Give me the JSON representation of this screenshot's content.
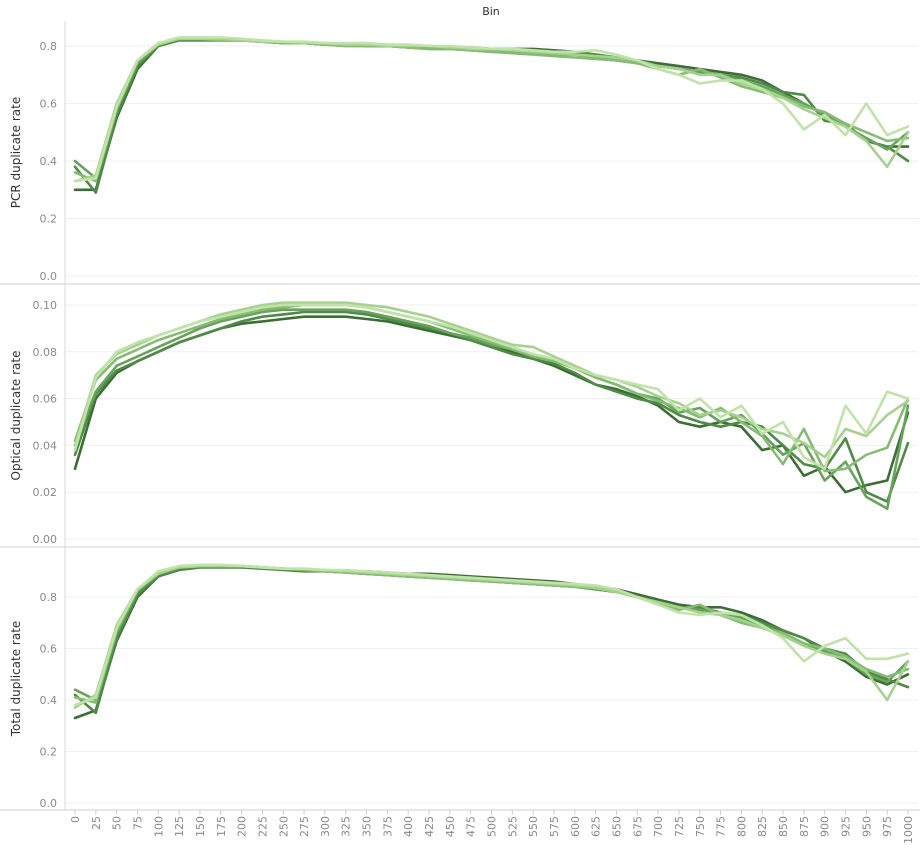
{
  "chart_data": {
    "type": "line",
    "x_title": "Bin",
    "x": [
      0,
      25,
      50,
      75,
      100,
      125,
      150,
      175,
      200,
      225,
      250,
      275,
      300,
      325,
      350,
      375,
      400,
      425,
      450,
      475,
      500,
      525,
      550,
      575,
      600,
      625,
      650,
      675,
      700,
      725,
      750,
      775,
      800,
      825,
      850,
      875,
      900,
      925,
      950,
      975,
      1000
    ],
    "series_colors": [
      "#3b6e34",
      "#4f8a46",
      "#67a35a",
      "#86bb75",
      "#a5d18f",
      "#c0e3a8"
    ],
    "panels": [
      {
        "ylabel": "PCR duplicate rate",
        "ylim": [
          0,
          0.85
        ],
        "yticks": [
          "0.0",
          "0.2",
          "0.4",
          "0.6",
          "0.8"
        ],
        "ytick_values": [
          0,
          0.2,
          0.4,
          0.6,
          0.8
        ],
        "series": [
          {
            "values": [
              0.3,
              0.3,
              0.55,
              0.72,
              0.8,
              0.82,
              0.82,
              0.82,
              0.82,
              0.815,
              0.81,
              0.81,
              0.805,
              0.805,
              0.8,
              0.8,
              0.8,
              0.8,
              0.795,
              0.795,
              0.79,
              0.79,
              0.79,
              0.785,
              0.78,
              0.77,
              0.76,
              0.75,
              0.74,
              0.73,
              0.72,
              0.71,
              0.7,
              0.68,
              0.64,
              0.6,
              0.56,
              0.52,
              0.47,
              0.45,
              0.45
            ]
          },
          {
            "values": [
              0.38,
              0.29,
              0.56,
              0.73,
              0.8,
              0.82,
              0.82,
              0.82,
              0.82,
              0.815,
              0.81,
              0.81,
              0.805,
              0.805,
              0.8,
              0.8,
              0.795,
              0.795,
              0.79,
              0.79,
              0.785,
              0.785,
              0.78,
              0.78,
              0.775,
              0.77,
              0.76,
              0.75,
              0.73,
              0.72,
              0.71,
              0.7,
              0.69,
              0.67,
              0.64,
              0.63,
              0.54,
              0.53,
              0.47,
              0.45,
              0.4
            ]
          },
          {
            "values": [
              0.4,
              0.34,
              0.58,
              0.74,
              0.805,
              0.825,
              0.825,
              0.82,
              0.82,
              0.815,
              0.81,
              0.81,
              0.805,
              0.8,
              0.8,
              0.8,
              0.795,
              0.79,
              0.79,
              0.785,
              0.78,
              0.78,
              0.775,
              0.77,
              0.77,
              0.76,
              0.75,
              0.74,
              0.73,
              0.72,
              0.71,
              0.7,
              0.68,
              0.66,
              0.63,
              0.6,
              0.56,
              0.52,
              0.48,
              0.44,
              0.5
            ]
          },
          {
            "values": [
              0.36,
              0.33,
              0.58,
              0.75,
              0.81,
              0.825,
              0.825,
              0.82,
              0.82,
              0.815,
              0.81,
              0.81,
              0.805,
              0.8,
              0.8,
              0.8,
              0.795,
              0.79,
              0.79,
              0.785,
              0.78,
              0.775,
              0.77,
              0.765,
              0.76,
              0.755,
              0.75,
              0.74,
              0.72,
              0.7,
              0.72,
              0.69,
              0.66,
              0.64,
              0.62,
              0.59,
              0.57,
              0.53,
              0.5,
              0.47,
              0.48
            ]
          },
          {
            "values": [
              0.33,
              0.35,
              0.6,
              0.75,
              0.805,
              0.825,
              0.825,
              0.825,
              0.82,
              0.815,
              0.815,
              0.81,
              0.81,
              0.805,
              0.805,
              0.8,
              0.8,
              0.8,
              0.795,
              0.79,
              0.79,
              0.785,
              0.78,
              0.775,
              0.77,
              0.765,
              0.76,
              0.75,
              0.73,
              0.72,
              0.7,
              0.7,
              0.67,
              0.65,
              0.62,
              0.58,
              0.55,
              0.52,
              0.47,
              0.38,
              0.5
            ]
          },
          {
            "values": [
              0.33,
              0.34,
              0.59,
              0.75,
              0.81,
              0.83,
              0.83,
              0.83,
              0.825,
              0.82,
              0.815,
              0.815,
              0.81,
              0.81,
              0.81,
              0.805,
              0.805,
              0.8,
              0.8,
              0.795,
              0.79,
              0.79,
              0.785,
              0.78,
              0.78,
              0.785,
              0.77,
              0.75,
              0.72,
              0.7,
              0.67,
              0.68,
              0.68,
              0.65,
              0.6,
              0.51,
              0.56,
              0.49,
              0.6,
              0.49,
              0.52
            ]
          }
        ]
      },
      {
        "ylabel": "Optical duplicate rate",
        "ylim": [
          0,
          0.103
        ],
        "yticks": [
          "0.00",
          "0.02",
          "0.04",
          "0.06",
          "0.08",
          "0.10"
        ],
        "ytick_values": [
          0,
          0.02,
          0.04,
          0.06,
          0.08,
          0.1
        ],
        "series": [
          {
            "values": [
              0.03,
              0.06,
              0.071,
              0.076,
              0.08,
              0.084,
              0.087,
              0.09,
              0.092,
              0.093,
              0.094,
              0.095,
              0.095,
              0.095,
              0.094,
              0.093,
              0.091,
              0.089,
              0.087,
              0.085,
              0.082,
              0.08,
              0.077,
              0.074,
              0.07,
              0.066,
              0.064,
              0.061,
              0.057,
              0.05,
              0.048,
              0.05,
              0.048,
              0.038,
              0.04,
              0.027,
              0.031,
              0.02,
              0.023,
              0.025,
              0.054
            ]
          },
          {
            "values": [
              0.036,
              0.062,
              0.072,
              0.076,
              0.08,
              0.084,
              0.087,
              0.09,
              0.093,
              0.095,
              0.096,
              0.097,
              0.097,
              0.097,
              0.096,
              0.094,
              0.092,
              0.09,
              0.088,
              0.085,
              0.082,
              0.079,
              0.077,
              0.075,
              0.071,
              0.066,
              0.063,
              0.06,
              0.058,
              0.053,
              0.05,
              0.048,
              0.05,
              0.048,
              0.04,
              0.032,
              0.03,
              0.043,
              0.02,
              0.016,
              0.041
            ]
          },
          {
            "values": [
              0.04,
              0.063,
              0.074,
              0.078,
              0.082,
              0.086,
              0.09,
              0.093,
              0.095,
              0.097,
              0.098,
              0.098,
              0.098,
              0.098,
              0.097,
              0.095,
              0.093,
              0.091,
              0.088,
              0.086,
              0.083,
              0.081,
              0.079,
              0.076,
              0.073,
              0.069,
              0.066,
              0.062,
              0.06,
              0.054,
              0.056,
              0.05,
              0.053,
              0.045,
              0.036,
              0.041,
              0.025,
              0.033,
              0.018,
              0.013,
              0.057
            ]
          },
          {
            "values": [
              0.042,
              0.068,
              0.077,
              0.081,
              0.085,
              0.088,
              0.091,
              0.094,
              0.096,
              0.098,
              0.099,
              0.1,
              0.1,
              0.1,
              0.099,
              0.097,
              0.095,
              0.093,
              0.09,
              0.087,
              0.084,
              0.081,
              0.078,
              0.076,
              0.073,
              0.069,
              0.066,
              0.062,
              0.059,
              0.056,
              0.052,
              0.056,
              0.05,
              0.044,
              0.032,
              0.047,
              0.029,
              0.03,
              0.036,
              0.039,
              0.06
            ]
          },
          {
            "values": [
              0.04,
              0.07,
              0.079,
              0.083,
              0.087,
              0.09,
              0.093,
              0.096,
              0.098,
              0.1,
              0.101,
              0.101,
              0.101,
              0.101,
              0.1,
              0.099,
              0.097,
              0.095,
              0.092,
              0.089,
              0.086,
              0.083,
              0.082,
              0.078,
              0.074,
              0.07,
              0.068,
              0.065,
              0.061,
              0.058,
              0.053,
              0.055,
              0.052,
              0.047,
              0.045,
              0.041,
              0.035,
              0.047,
              0.044,
              0.053,
              0.059
            ]
          },
          {
            "values": [
              0.038,
              0.069,
              0.08,
              0.084,
              0.087,
              0.09,
              0.093,
              0.095,
              0.097,
              0.099,
              0.1,
              0.1,
              0.1,
              0.1,
              0.099,
              0.097,
              0.095,
              0.093,
              0.091,
              0.088,
              0.085,
              0.082,
              0.079,
              0.077,
              0.073,
              0.07,
              0.068,
              0.066,
              0.064,
              0.055,
              0.06,
              0.052,
              0.057,
              0.045,
              0.05,
              0.035,
              0.03,
              0.057,
              0.045,
              0.063,
              0.06
            ]
          }
        ]
      },
      {
        "ylabel": "Total duplicate rate",
        "ylim": [
          0,
          0.95
        ],
        "yticks": [
          "0.0",
          "0.2",
          "0.4",
          "0.6",
          "0.8"
        ],
        "ytick_values": [
          0,
          0.2,
          0.4,
          0.6,
          0.8
        ],
        "series": [
          {
            "values": [
              0.33,
              0.36,
              0.63,
              0.8,
              0.88,
              0.91,
              0.92,
              0.92,
              0.92,
              0.915,
              0.91,
              0.905,
              0.905,
              0.9,
              0.9,
              0.895,
              0.89,
              0.89,
              0.885,
              0.88,
              0.875,
              0.87,
              0.865,
              0.86,
              0.85,
              0.84,
              0.83,
              0.81,
              0.79,
              0.77,
              0.76,
              0.76,
              0.74,
              0.71,
              0.67,
              0.64,
              0.59,
              0.55,
              0.49,
              0.46,
              0.5
            ]
          },
          {
            "values": [
              0.42,
              0.35,
              0.64,
              0.81,
              0.88,
              0.905,
              0.915,
              0.915,
              0.915,
              0.91,
              0.905,
              0.9,
              0.9,
              0.895,
              0.89,
              0.885,
              0.88,
              0.875,
              0.87,
              0.865,
              0.86,
              0.855,
              0.85,
              0.845,
              0.84,
              0.83,
              0.82,
              0.8,
              0.78,
              0.76,
              0.76,
              0.74,
              0.73,
              0.7,
              0.67,
              0.64,
              0.6,
              0.58,
              0.51,
              0.48,
              0.45
            ]
          },
          {
            "values": [
              0.44,
              0.4,
              0.66,
              0.82,
              0.89,
              0.915,
              0.92,
              0.92,
              0.92,
              0.915,
              0.91,
              0.905,
              0.9,
              0.895,
              0.89,
              0.885,
              0.88,
              0.875,
              0.87,
              0.865,
              0.86,
              0.855,
              0.85,
              0.845,
              0.84,
              0.83,
              0.82,
              0.8,
              0.78,
              0.76,
              0.75,
              0.74,
              0.72,
              0.69,
              0.66,
              0.62,
              0.59,
              0.56,
              0.5,
              0.47,
              0.55
            ]
          },
          {
            "values": [
              0.41,
              0.39,
              0.67,
              0.83,
              0.895,
              0.915,
              0.92,
              0.92,
              0.92,
              0.915,
              0.91,
              0.905,
              0.9,
              0.895,
              0.89,
              0.885,
              0.88,
              0.875,
              0.87,
              0.865,
              0.86,
              0.855,
              0.85,
              0.845,
              0.84,
              0.835,
              0.82,
              0.8,
              0.77,
              0.75,
              0.77,
              0.73,
              0.7,
              0.68,
              0.66,
              0.62,
              0.6,
              0.57,
              0.52,
              0.49,
              0.52
            ]
          },
          {
            "values": [
              0.37,
              0.42,
              0.69,
              0.83,
              0.89,
              0.915,
              0.92,
              0.92,
              0.92,
              0.915,
              0.91,
              0.91,
              0.905,
              0.9,
              0.895,
              0.89,
              0.885,
              0.88,
              0.875,
              0.87,
              0.865,
              0.86,
              0.855,
              0.85,
              0.845,
              0.835,
              0.82,
              0.8,
              0.78,
              0.76,
              0.74,
              0.73,
              0.71,
              0.68,
              0.65,
              0.61,
              0.58,
              0.56,
              0.51,
              0.4,
              0.55
            ]
          },
          {
            "values": [
              0.38,
              0.41,
              0.68,
              0.83,
              0.9,
              0.92,
              0.925,
              0.925,
              0.92,
              0.915,
              0.91,
              0.91,
              0.905,
              0.905,
              0.9,
              0.895,
              0.89,
              0.885,
              0.88,
              0.875,
              0.87,
              0.865,
              0.86,
              0.855,
              0.85,
              0.845,
              0.83,
              0.8,
              0.77,
              0.74,
              0.73,
              0.74,
              0.73,
              0.69,
              0.64,
              0.55,
              0.61,
              0.64,
              0.56,
              0.56,
              0.58
            ]
          }
        ]
      }
    ]
  }
}
